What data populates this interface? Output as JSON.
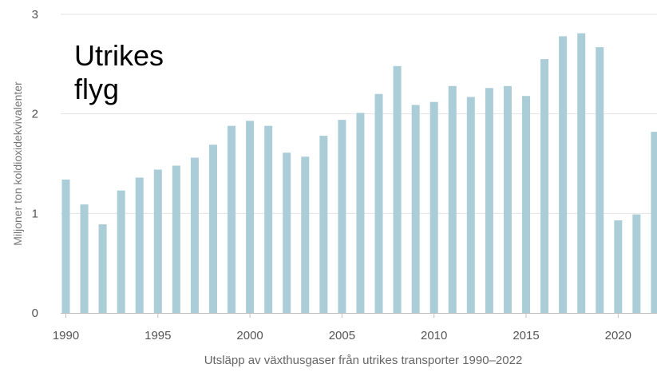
{
  "chart_data": {
    "type": "bar",
    "title_lines": [
      "Utrikes",
      "flyg"
    ],
    "xlabel": "Utsläpp av växthusgaser från utrikes transporter 1990–2022",
    "ylabel": "Miljoner ton koldioxidekvivalenter",
    "ylim": [
      0,
      3
    ],
    "yticks": [
      "0",
      "1",
      "2",
      "3"
    ],
    "xticks": [
      "1990",
      "1995",
      "2000",
      "2005",
      "2010",
      "2015",
      "2020"
    ],
    "grid": true,
    "colors": {
      "bar": "#abcdd8",
      "grid": "#e3e3e3",
      "axis": "#bfbfbf",
      "text": "#555555",
      "title": "#000000"
    },
    "categories": [
      "1990",
      "1991",
      "1992",
      "1993",
      "1994",
      "1995",
      "1996",
      "1997",
      "1998",
      "1999",
      "2000",
      "2001",
      "2002",
      "2003",
      "2004",
      "2005",
      "2006",
      "2007",
      "2008",
      "2009",
      "2010",
      "2011",
      "2012",
      "2013",
      "2014",
      "2015",
      "2016",
      "2017",
      "2018",
      "2019",
      "2020",
      "2021",
      "2022"
    ],
    "values": [
      1.34,
      1.09,
      0.89,
      1.23,
      1.36,
      1.44,
      1.48,
      1.56,
      1.69,
      1.88,
      1.93,
      1.88,
      1.61,
      1.57,
      1.78,
      1.94,
      2.01,
      2.2,
      2.48,
      2.09,
      2.12,
      2.28,
      2.17,
      2.26,
      2.28,
      2.18,
      2.55,
      2.78,
      2.81,
      2.67,
      0.93,
      0.99,
      1.82
    ]
  }
}
